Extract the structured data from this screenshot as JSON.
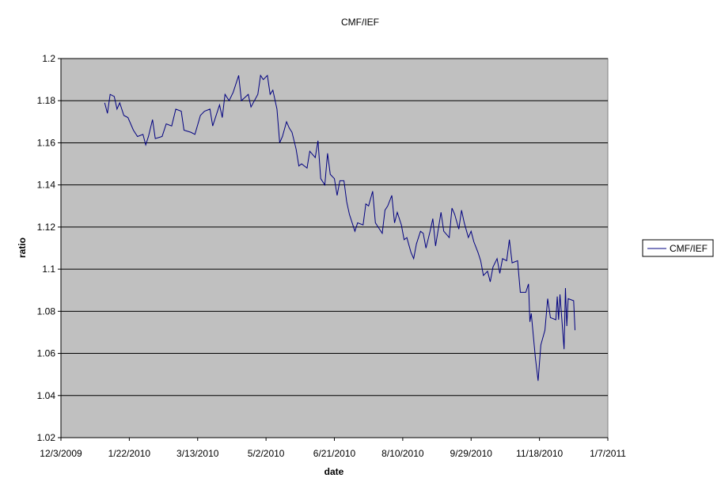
{
  "chart_data": {
    "type": "line",
    "title": "CMF/IEF",
    "x_label": "date",
    "y_label": "ratio",
    "x": [
      "1/4/2010",
      "1/6/2010",
      "1/8/2010",
      "1/11/2010",
      "1/13/2010",
      "1/15/2010",
      "1/18/2010",
      "1/21/2010",
      "1/25/2010",
      "1/28/2010",
      "2/1/2010",
      "2/3/2010",
      "2/5/2010",
      "2/8/2010",
      "2/10/2010",
      "2/15/2010",
      "2/18/2010",
      "2/22/2010",
      "2/25/2010",
      "3/1/2010",
      "3/3/2010",
      "3/8/2010",
      "3/11/2010",
      "3/15/2010",
      "3/18/2010",
      "3/22/2010",
      "3/24/2010",
      "3/29/2010",
      "3/31/2010",
      "4/2/2010",
      "4/5/2010",
      "4/8/2010",
      "4/12/2010",
      "4/14/2010",
      "4/19/2010",
      "4/21/2010",
      "4/26/2010",
      "4/28/2010",
      "4/30/2010",
      "5/3/2010",
      "5/5/2010",
      "5/7/2010",
      "5/10/2010",
      "5/12/2010",
      "5/14/2010",
      "5/17/2010",
      "5/19/2010",
      "5/21/2010",
      "5/24/2010",
      "5/26/2010",
      "5/28/2010",
      "6/1/2010",
      "6/3/2010",
      "6/7/2010",
      "6/9/2010",
      "6/11/2010",
      "6/14/2010",
      "6/16/2010",
      "6/18/2010",
      "6/21/2010",
      "6/23/2010",
      "6/25/2010",
      "6/28/2010",
      "6/30/2010",
      "7/2/2010",
      "7/6/2010",
      "7/8/2010",
      "7/12/2010",
      "7/14/2010",
      "7/16/2010",
      "7/19/2010",
      "7/21/2010",
      "7/23/2010",
      "7/26/2010",
      "7/28/2010",
      "7/30/2010",
      "8/2/2010",
      "8/4/2010",
      "8/6/2010",
      "8/9/2010",
      "8/11/2010",
      "8/13/2010",
      "8/16/2010",
      "8/18/2010",
      "8/20/2010",
      "8/23/2010",
      "8/25/2010",
      "8/27/2010",
      "8/30/2010",
      "9/1/2010",
      "9/3/2010",
      "9/7/2010",
      "9/9/2010",
      "9/13/2010",
      "9/15/2010",
      "9/17/2010",
      "9/20/2010",
      "9/22/2010",
      "9/24/2010",
      "9/27/2010",
      "9/29/2010",
      "10/1/2010",
      "10/4/2010",
      "10/6/2010",
      "10/8/2010",
      "10/11/2010",
      "10/13/2010",
      "10/15/2010",
      "10/18/2010",
      "10/20/2010",
      "10/22/2010",
      "10/25/2010",
      "10/27/2010",
      "10/29/2010",
      "11/2/2010",
      "11/4/2010",
      "11/8/2010",
      "11/10/2010",
      "11/11/2010",
      "11/12/2010",
      "11/15/2010",
      "11/17/2010",
      "11/19/2010",
      "11/22/2010",
      "11/24/2010",
      "11/26/2010",
      "11/30/2010",
      "12/1/2010",
      "12/2/2010",
      "12/3/2010",
      "12/6/2010",
      "12/7/2010",
      "12/8/2010",
      "12/9/2010",
      "12/13/2010",
      "12/14/2010"
    ],
    "series": [
      {
        "name": "CMF/IEF",
        "color": "#000080",
        "values": [
          1.179,
          1.174,
          1.183,
          1.182,
          1.176,
          1.179,
          1.173,
          1.172,
          1.166,
          1.163,
          1.164,
          1.159,
          1.163,
          1.171,
          1.162,
          1.163,
          1.169,
          1.168,
          1.176,
          1.175,
          1.166,
          1.165,
          1.164,
          1.173,
          1.175,
          1.176,
          1.168,
          1.178,
          1.172,
          1.183,
          1.18,
          1.184,
          1.192,
          1.18,
          1.183,
          1.177,
          1.183,
          1.192,
          1.19,
          1.192,
          1.183,
          1.185,
          1.176,
          1.16,
          1.163,
          1.17,
          1.167,
          1.165,
          1.157,
          1.149,
          1.15,
          1.148,
          1.156,
          1.153,
          1.161,
          1.143,
          1.14,
          1.155,
          1.145,
          1.143,
          1.135,
          1.142,
          1.142,
          1.132,
          1.126,
          1.118,
          1.122,
          1.121,
          1.131,
          1.13,
          1.137,
          1.122,
          1.12,
          1.117,
          1.128,
          1.13,
          1.135,
          1.122,
          1.127,
          1.121,
          1.114,
          1.115,
          1.108,
          1.105,
          1.112,
          1.118,
          1.117,
          1.11,
          1.118,
          1.124,
          1.111,
          1.127,
          1.118,
          1.115,
          1.129,
          1.126,
          1.119,
          1.128,
          1.122,
          1.115,
          1.118,
          1.113,
          1.108,
          1.104,
          1.097,
          1.099,
          1.094,
          1.101,
          1.105,
          1.098,
          1.105,
          1.104,
          1.114,
          1.103,
          1.104,
          1.089,
          1.089,
          1.093,
          1.075,
          1.079,
          1.058,
          1.047,
          1.064,
          1.071,
          1.086,
          1.077,
          1.076,
          1.087,
          1.076,
          1.088,
          1.062,
          1.091,
          1.073,
          1.086,
          1.085,
          1.071
        ]
      }
    ],
    "xlim": [
      "12/3/2009",
      "1/7/2011"
    ],
    "xticks": [
      "12/3/2009",
      "1/22/2010",
      "3/13/2010",
      "5/2/2010",
      "6/21/2010",
      "8/10/2010",
      "9/29/2010",
      "11/18/2010",
      "1/7/2011"
    ],
    "ylim": [
      1.02,
      1.2
    ],
    "yticks": [
      1.02,
      1.04,
      1.06,
      1.08,
      1.1,
      1.12,
      1.14,
      1.16,
      1.18,
      1.2
    ],
    "grid": true,
    "legend": "right"
  }
}
